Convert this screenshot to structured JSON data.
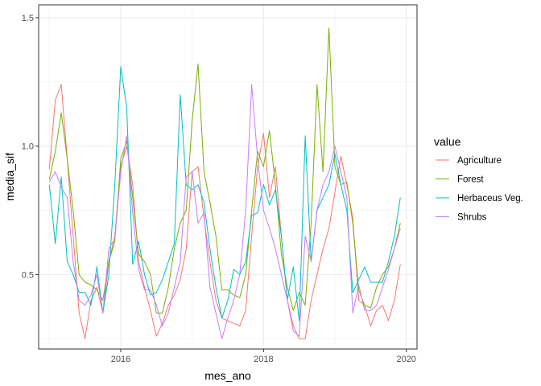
{
  "chart_data": {
    "type": "line",
    "xlabel": "mes_ano",
    "ylabel": "media_sif",
    "xlim": [
      2014.85,
      2020.15
    ],
    "ylim": [
      0.21,
      1.55
    ],
    "x_ticks": [
      2016,
      2018,
      2020
    ],
    "y_ticks": [
      0.5,
      1.0,
      1.5
    ],
    "x_tick_labels": [
      "2016",
      "2018",
      "2020"
    ],
    "y_tick_labels": [
      "0.5",
      "1.0",
      "1.5"
    ],
    "grid": true,
    "legend_title": "value",
    "legend_position": "right",
    "x": [
      2015.0,
      2015.0833,
      2015.1667,
      2015.25,
      2015.3333,
      2015.4167,
      2015.5,
      2015.5833,
      2015.6667,
      2015.75,
      2015.8333,
      2015.9167,
      2016.0,
      2016.0833,
      2016.1667,
      2016.25,
      2016.3333,
      2016.4167,
      2016.5,
      2016.5833,
      2016.6667,
      2016.75,
      2016.8333,
      2016.9167,
      2017.0,
      2017.0833,
      2017.1667,
      2017.25,
      2017.3333,
      2017.4167,
      2017.5,
      2017.5833,
      2017.6667,
      2017.75,
      2017.8333,
      2017.9167,
      2018.0,
      2018.0833,
      2018.1667,
      2018.25,
      2018.3333,
      2018.4167,
      2018.5,
      2018.5833,
      2018.6667,
      2018.75,
      2018.8333,
      2018.9167,
      2019.0,
      2019.0833,
      2019.1667,
      2019.25,
      2019.3333,
      2019.4167,
      2019.5,
      2019.5833,
      2019.6667,
      2019.75,
      2019.8333,
      2019.9167
    ],
    "series": [
      {
        "name": "Agriculture",
        "color": "#F8766D",
        "values": [
          0.91,
          1.18,
          1.24,
          0.95,
          0.65,
          0.35,
          0.25,
          0.4,
          0.45,
          0.35,
          0.55,
          0.65,
          0.92,
          1.0,
          0.85,
          0.55,
          0.45,
          0.36,
          0.26,
          0.31,
          0.38,
          0.42,
          0.48,
          0.6,
          0.9,
          0.92,
          0.72,
          0.55,
          0.4,
          0.33,
          0.32,
          0.31,
          0.3,
          0.36,
          0.65,
          0.92,
          1.05,
          0.8,
          0.92,
          0.65,
          0.4,
          0.3,
          0.25,
          0.25,
          0.4,
          0.5,
          0.6,
          0.68,
          0.82,
          0.96,
          0.85,
          0.72,
          0.4,
          0.38,
          0.3,
          0.36,
          0.38,
          0.32,
          0.4,
          0.54
        ]
      },
      {
        "name": "Forest",
        "color": "#7CAE00",
        "values": [
          0.87,
          0.98,
          1.13,
          0.95,
          0.75,
          0.5,
          0.47,
          0.46,
          0.44,
          0.4,
          0.55,
          0.63,
          0.95,
          1.02,
          0.8,
          0.58,
          0.55,
          0.5,
          0.35,
          0.35,
          0.45,
          0.6,
          0.7,
          0.75,
          1.1,
          1.32,
          0.9,
          0.78,
          0.65,
          0.44,
          0.44,
          0.42,
          0.41,
          0.5,
          0.75,
          0.98,
          0.92,
          1.06,
          0.85,
          0.58,
          0.45,
          0.36,
          0.43,
          0.38,
          0.7,
          1.24,
          0.9,
          1.46,
          0.92,
          0.85,
          0.86,
          0.7,
          0.44,
          0.38,
          0.37,
          0.45,
          0.5,
          0.53,
          0.6,
          0.7
        ]
      },
      {
        "name": "Herbaceus Veg.",
        "color": "#00BFC4",
        "values": [
          0.85,
          0.62,
          0.88,
          0.55,
          0.5,
          0.43,
          0.43,
          0.38,
          0.53,
          0.35,
          0.5,
          0.85,
          1.31,
          1.15,
          0.54,
          0.63,
          0.5,
          0.42,
          0.43,
          0.48,
          0.55,
          0.62,
          1.2,
          0.85,
          0.83,
          0.85,
          0.78,
          0.6,
          0.45,
          0.33,
          0.4,
          0.52,
          0.5,
          0.55,
          0.73,
          0.74,
          0.85,
          0.77,
          0.83,
          0.65,
          0.4,
          0.53,
          0.32,
          1.04,
          0.55,
          0.75,
          0.8,
          0.85,
          0.97,
          0.85,
          0.75,
          0.43,
          0.48,
          0.53,
          0.47,
          0.47,
          0.47,
          0.55,
          0.65,
          0.8
        ]
      },
      {
        "name": "Shrubs",
        "color": "#C77CFF",
        "values": [
          0.86,
          0.9,
          0.84,
          0.8,
          0.55,
          0.4,
          0.38,
          0.42,
          0.5,
          0.35,
          0.6,
          0.64,
          0.9,
          1.04,
          0.74,
          0.52,
          0.44,
          0.44,
          0.38,
          0.3,
          0.35,
          0.45,
          0.55,
          0.88,
          0.9,
          0.7,
          0.74,
          0.45,
          0.35,
          0.25,
          0.33,
          0.4,
          0.5,
          0.75,
          1.24,
          0.95,
          0.75,
          0.68,
          0.6,
          0.5,
          0.4,
          0.28,
          0.26,
          0.65,
          0.55,
          0.75,
          0.85,
          0.9,
          1.0,
          0.9,
          0.8,
          0.35,
          0.46,
          0.36,
          0.36,
          0.38,
          0.45,
          0.52,
          0.6,
          0.68
        ]
      }
    ]
  }
}
